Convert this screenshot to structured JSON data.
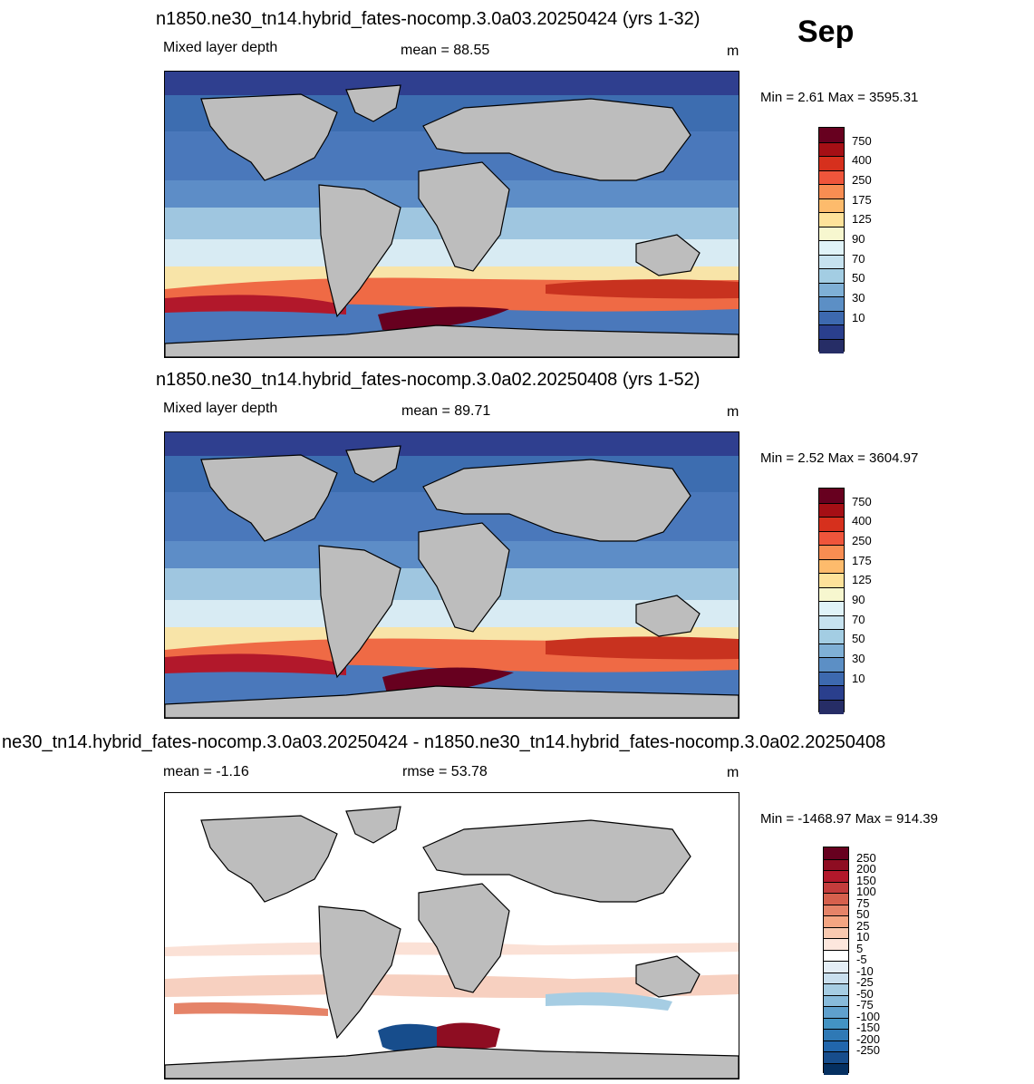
{
  "month": "Sep",
  "panels": [
    {
      "id": "case",
      "title": "n1850.ne30_tn14.hybrid_fates-nocomp.3.0a03.20250424 (yrs 1-32)",
      "left_text": "Mixed layer depth",
      "center_text": "mean =  88.55",
      "units": "m",
      "minmax": "Min =   2.61 Max = 3595.31",
      "colorbar": {
        "colors": [
          "#67001f",
          "#a50f15",
          "#d6301d",
          "#ef553b",
          "#f88d52",
          "#fdbb6c",
          "#fee29a",
          "#f7f7cf",
          "#e0f3f8",
          "#c6e2ef",
          "#a3cde3",
          "#7fb0d6",
          "#5c8fc5",
          "#3d69af",
          "#2a3f8d",
          "#262d66"
        ],
        "labels": [
          "750",
          "400",
          "250",
          "175",
          "125",
          "90",
          "70",
          "50",
          "30",
          "10"
        ]
      }
    },
    {
      "id": "control",
      "title": "n1850.ne30_tn14.hybrid_fates-nocomp.3.0a02.20250408 (yrs 1-52)",
      "left_text": "Mixed layer depth",
      "center_text": "mean =  89.71",
      "units": "m",
      "minmax": "Min =   2.52 Max = 3604.97",
      "colorbar": {
        "colors": [
          "#67001f",
          "#a50f15",
          "#d6301d",
          "#ef553b",
          "#f88d52",
          "#fdbb6c",
          "#fee29a",
          "#f7f7cf",
          "#e0f3f8",
          "#c6e2ef",
          "#a3cde3",
          "#7fb0d6",
          "#5c8fc5",
          "#3d69af",
          "#2a3f8d",
          "#262d66"
        ],
        "labels": [
          "750",
          "400",
          "250",
          "175",
          "125",
          "90",
          "70",
          "50",
          "30",
          "10"
        ]
      }
    },
    {
      "id": "diff",
      "title": "ne30_tn14.hybrid_fates-nocomp.3.0a03.20250424 - n1850.ne30_tn14.hybrid_fates-nocomp.3.0a02.20250408",
      "left_text": "mean =  -1.16",
      "center_text": "rmse =  53.78",
      "units": "m",
      "minmax": "Min = -1468.97 Max = 914.39",
      "colorbar": {
        "colors": [
          "#67001f",
          "#8e0d22",
          "#b2182b",
          "#c43c3c",
          "#d6604d",
          "#e58368",
          "#f4a582",
          "#f9c9b0",
          "#fde7dd",
          "#ffffff",
          "#e4eef6",
          "#c9dfee",
          "#a6cde3",
          "#88bbdb",
          "#5fa0cd",
          "#4393c3",
          "#2f79b5",
          "#2166ac",
          "#174d8c",
          "#053061"
        ],
        "labels": [
          "250",
          "200",
          "150",
          "100",
          "75",
          "50",
          "25",
          "10",
          "5",
          "-5",
          "-10",
          "-25",
          "-50",
          "-75",
          "-100",
          "-150",
          "-200",
          "-250"
        ]
      }
    }
  ]
}
